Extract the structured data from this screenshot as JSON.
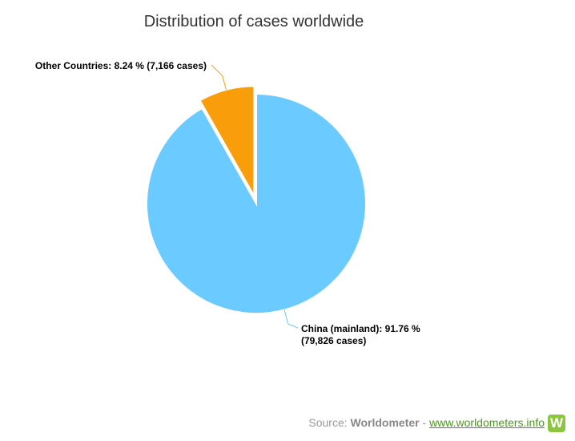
{
  "chart_data": {
    "type": "pie",
    "title": "Distribution of cases worldwide",
    "values": [
      91.76,
      8.24
    ],
    "value_labels": [
      "China (mainland): 91.76 % (79,826 cases)",
      "Other Countries: 8.24 % (7,166 cases)"
    ],
    "colors": [
      "#6bcaff",
      "#f99d0b"
    ],
    "exploded": [
      false,
      true
    ]
  },
  "source": {
    "prefix": "Source:",
    "name": "Worldometer",
    "separator": "-",
    "url": "www.worldometers.info",
    "logo": "W"
  }
}
